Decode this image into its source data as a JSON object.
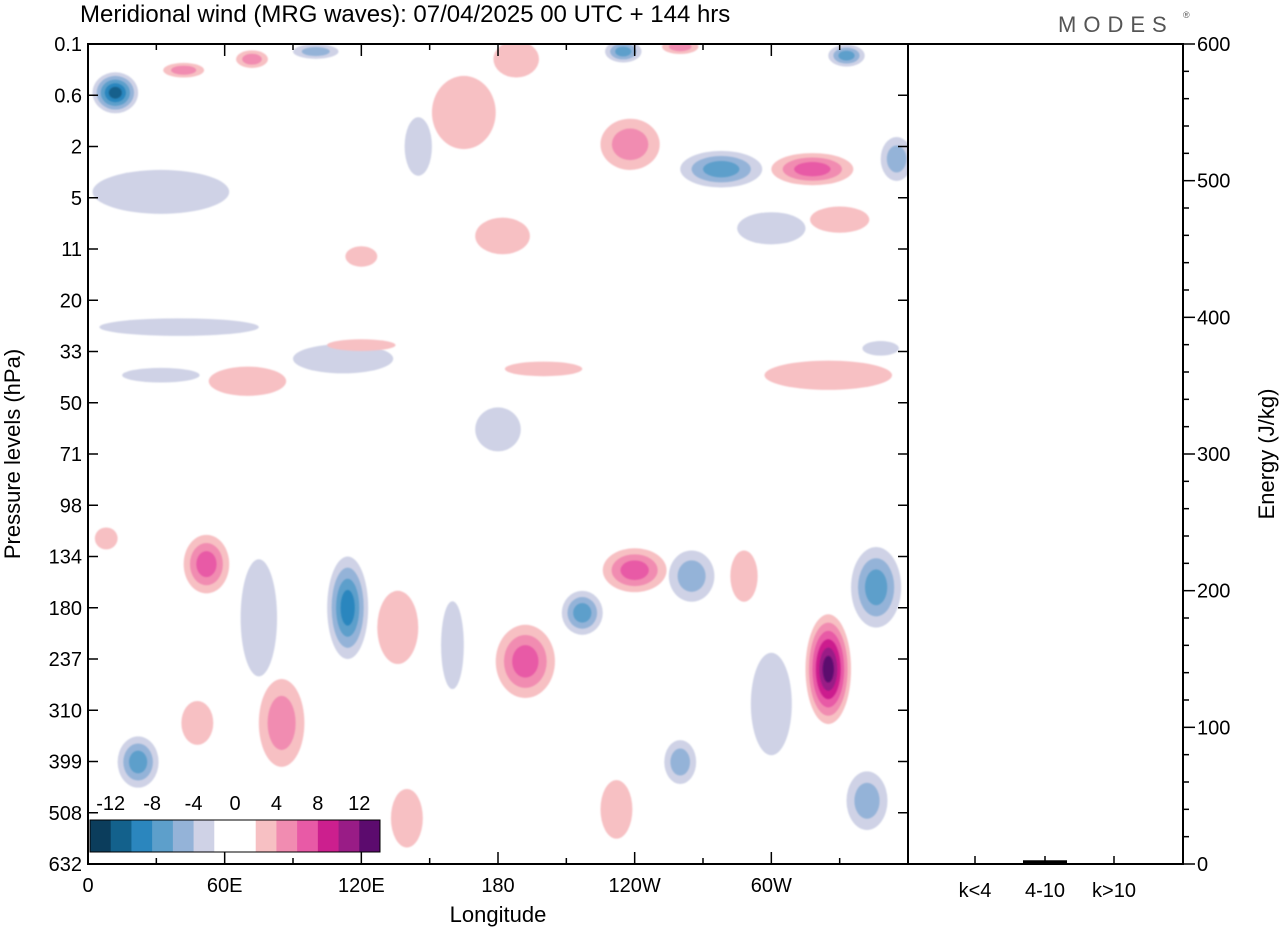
{
  "header": {
    "title": "Meridional wind (MRG waves):  07/04/2025  00 UTC  + 144 hrs",
    "logo": "MODES"
  },
  "chart_data": [
    {
      "type": "heatmap",
      "title": "Meridional wind (MRG waves):  07/04/2025  00 UTC  + 144 hrs",
      "xlabel": "Longitude",
      "ylabel": "Pressure levels (hPa)",
      "x_ticks": [
        "0",
        "60E",
        "120E",
        "180",
        "120W",
        "60W"
      ],
      "x_tick_values": [
        0,
        60,
        120,
        180,
        240,
        300
      ],
      "xlim": [
        0,
        360
      ],
      "y_ticks": [
        "0.1",
        "0.6",
        "2",
        "5",
        "11",
        "20",
        "33",
        "50",
        "71",
        "98",
        "134",
        "180",
        "237",
        "310",
        "399",
        "508",
        "632"
      ],
      "y_scale": "log-pressure",
      "y_inverted": true,
      "colorbar": {
        "labels": [
          "-12",
          "-8",
          "-4",
          "0",
          "4",
          "8",
          "12"
        ],
        "colors": [
          "#0b3d5c",
          "#13618c",
          "#2b86be",
          "#5d9fcb",
          "#94b3d8",
          "#cfd2e6",
          "#ffffff",
          "#ffffff",
          "#f7c0c3",
          "#f18cb1",
          "#e85aa6",
          "#cc1f8e",
          "#991c86",
          "#5c0b6e"
        ],
        "levels": [
          -14,
          -12,
          -10,
          -8,
          -6,
          -4,
          -2,
          0,
          2,
          4,
          6,
          8,
          10,
          12,
          14
        ]
      },
      "regions": [
        {
          "lon": 12,
          "p": 0.55,
          "value": -12,
          "w_deg": 20,
          "h_dec": 0.28
        },
        {
          "lon": 42,
          "p": 0.25,
          "value": 6,
          "w_deg": 18,
          "h_dec": 0.1
        },
        {
          "lon": 72,
          "p": 0.17,
          "value": 6,
          "w_deg": 14,
          "h_dec": 0.12
        },
        {
          "lon": 100,
          "p": 0.13,
          "value": -6,
          "w_deg": 20,
          "h_dec": 0.1
        },
        {
          "lon": 165,
          "p": 0.9,
          "value": 4,
          "w_deg": 28,
          "h_dec": 0.5
        },
        {
          "lon": 188,
          "p": 0.17,
          "value": 4,
          "w_deg": 20,
          "h_dec": 0.25
        },
        {
          "lon": 235,
          "p": 0.13,
          "value": -8,
          "w_deg": 16,
          "h_dec": 0.15
        },
        {
          "lon": 260,
          "p": 0.11,
          "value": 6,
          "w_deg": 16,
          "h_dec": 0.1
        },
        {
          "lon": 333,
          "p": 0.15,
          "value": -8,
          "w_deg": 16,
          "h_dec": 0.15
        },
        {
          "lon": 238,
          "p": 1.9,
          "value": 6,
          "w_deg": 26,
          "h_dec": 0.35
        },
        {
          "lon": 278,
          "p": 3.0,
          "value": -8,
          "w_deg": 36,
          "h_dec": 0.25
        },
        {
          "lon": 318,
          "p": 3.0,
          "value": 8,
          "w_deg": 36,
          "h_dec": 0.22
        },
        {
          "lon": 355,
          "p": 2.5,
          "value": -6,
          "w_deg": 14,
          "h_dec": 0.3
        },
        {
          "lon": 145,
          "p": 2.0,
          "value": -4,
          "w_deg": 12,
          "h_dec": 0.4
        },
        {
          "lon": 32,
          "p": 4.5,
          "value": -4,
          "w_deg": 60,
          "h_dec": 0.3
        },
        {
          "lon": 300,
          "p": 8.0,
          "value": -4,
          "w_deg": 30,
          "h_dec": 0.22
        },
        {
          "lon": 330,
          "p": 7.0,
          "value": 4,
          "w_deg": 26,
          "h_dec": 0.18
        },
        {
          "lon": 182,
          "p": 9.0,
          "value": 4,
          "w_deg": 24,
          "h_dec": 0.25
        },
        {
          "lon": 120,
          "p": 12.0,
          "value": 4,
          "w_deg": 14,
          "h_dec": 0.14
        },
        {
          "lon": 40,
          "p": 26.0,
          "value": -4,
          "w_deg": 70,
          "h_dec": 0.12
        },
        {
          "lon": 112,
          "p": 35.0,
          "value": -4,
          "w_deg": 44,
          "h_dec": 0.2
        },
        {
          "lon": 70,
          "p": 42.0,
          "value": 4,
          "w_deg": 34,
          "h_dec": 0.2
        },
        {
          "lon": 32,
          "p": 40.0,
          "value": -4,
          "w_deg": 34,
          "h_dec": 0.1
        },
        {
          "lon": 120,
          "p": 31.0,
          "value": 4,
          "w_deg": 30,
          "h_dec": 0.08
        },
        {
          "lon": 180,
          "p": 60.0,
          "value": -4,
          "w_deg": 20,
          "h_dec": 0.3
        },
        {
          "lon": 200,
          "p": 38.0,
          "value": 4,
          "w_deg": 34,
          "h_dec": 0.1
        },
        {
          "lon": 325,
          "p": 40.0,
          "value": 4,
          "w_deg": 56,
          "h_dec": 0.2
        },
        {
          "lon": 348,
          "p": 32.0,
          "value": -4,
          "w_deg": 16,
          "h_dec": 0.1
        },
        {
          "lon": 52,
          "p": 140.0,
          "value": 8,
          "w_deg": 20,
          "h_dec": 0.4
        },
        {
          "lon": 22,
          "p": 400.0,
          "value": -8,
          "w_deg": 18,
          "h_dec": 0.35
        },
        {
          "lon": 48,
          "p": 330.0,
          "value": 4,
          "w_deg": 14,
          "h_dec": 0.3
        },
        {
          "lon": 75,
          "p": 190.0,
          "value": -4,
          "w_deg": 16,
          "h_dec": 0.8
        },
        {
          "lon": 85,
          "p": 330.0,
          "value": 6,
          "w_deg": 20,
          "h_dec": 0.6
        },
        {
          "lon": 114,
          "p": 180.0,
          "value": -10,
          "w_deg": 18,
          "h_dec": 0.7
        },
        {
          "lon": 136,
          "p": 200.0,
          "value": 4,
          "w_deg": 18,
          "h_dec": 0.5
        },
        {
          "lon": 140,
          "p": 520.0,
          "value": 4,
          "w_deg": 14,
          "h_dec": 0.4
        },
        {
          "lon": 160,
          "p": 220.0,
          "value": -4,
          "w_deg": 10,
          "h_dec": 0.6
        },
        {
          "lon": 192,
          "p": 240.0,
          "value": 8,
          "w_deg": 26,
          "h_dec": 0.5
        },
        {
          "lon": 217,
          "p": 185.0,
          "value": -8,
          "w_deg": 18,
          "h_dec": 0.3
        },
        {
          "lon": 240,
          "p": 145.0,
          "value": 8,
          "w_deg": 28,
          "h_dec": 0.3
        },
        {
          "lon": 265,
          "p": 150.0,
          "value": -6,
          "w_deg": 20,
          "h_dec": 0.35
        },
        {
          "lon": 260,
          "p": 400.0,
          "value": -6,
          "w_deg": 14,
          "h_dec": 0.3
        },
        {
          "lon": 300,
          "p": 300.0,
          "value": -4,
          "w_deg": 18,
          "h_dec": 0.7
        },
        {
          "lon": 325,
          "p": 250.0,
          "value": 14,
          "w_deg": 20,
          "h_dec": 0.75
        },
        {
          "lon": 346,
          "p": 160.0,
          "value": -8,
          "w_deg": 22,
          "h_dec": 0.55
        },
        {
          "lon": 342,
          "p": 480.0,
          "value": -6,
          "w_deg": 18,
          "h_dec": 0.4
        },
        {
          "lon": 288,
          "p": 150.0,
          "value": 4,
          "w_deg": 12,
          "h_dec": 0.35
        },
        {
          "lon": 232,
          "p": 500.0,
          "value": 4,
          "w_deg": 14,
          "h_dec": 0.4
        },
        {
          "lon": 8,
          "p": 120.0,
          "value": 4,
          "w_deg": 10,
          "h_dec": 0.15
        }
      ]
    },
    {
      "type": "bar",
      "categories": [
        "k<4",
        "4-10",
        "k>10"
      ],
      "values": [
        0,
        2,
        0
      ],
      "ylabel": "Energy (J/kg)",
      "ylim": [
        0,
        600
      ],
      "y_ticks": [
        "0",
        "100",
        "200",
        "300",
        "400",
        "500",
        "600"
      ],
      "y_tick_values": [
        0,
        100,
        200,
        300,
        400,
        500,
        600
      ]
    }
  ]
}
